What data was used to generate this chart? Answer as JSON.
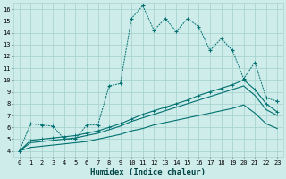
{
  "title": "",
  "xlabel": "Humidex (Indice chaleur)",
  "bg_color": "#ceecea",
  "grid_color": "#aad4d0",
  "line_color": "#007070",
  "xlim": [
    -0.5,
    23.5
  ],
  "ylim": [
    3.5,
    16.5
  ],
  "xticks": [
    0,
    1,
    2,
    3,
    4,
    5,
    6,
    7,
    8,
    9,
    10,
    11,
    12,
    13,
    14,
    15,
    16,
    17,
    18,
    19,
    20,
    21,
    22,
    23
  ],
  "yticks": [
    4,
    5,
    6,
    7,
    8,
    9,
    10,
    11,
    12,
    13,
    14,
    15,
    16
  ],
  "series1_x": [
    0,
    1,
    2,
    3,
    4,
    5,
    6,
    7,
    8,
    9,
    10,
    11,
    12,
    13,
    14,
    15,
    16,
    17,
    18,
    19,
    20,
    21,
    22,
    23
  ],
  "series1_y": [
    4.0,
    6.3,
    6.2,
    6.1,
    5.0,
    5.0,
    6.2,
    6.2,
    9.5,
    9.7,
    15.2,
    16.3,
    14.2,
    15.2,
    14.1,
    15.2,
    14.5,
    12.5,
    13.5,
    12.5,
    10.1,
    11.5,
    8.5,
    8.2
  ],
  "series2_x": [
    0,
    1,
    2,
    3,
    4,
    5,
    6,
    7,
    8,
    9,
    10,
    11,
    12,
    13,
    14,
    15,
    16,
    17,
    18,
    19,
    20,
    21,
    22,
    23
  ],
  "series2_y": [
    4.0,
    4.9,
    5.0,
    5.1,
    5.2,
    5.3,
    5.5,
    5.7,
    6.0,
    6.3,
    6.7,
    7.1,
    7.4,
    7.7,
    8.0,
    8.3,
    8.7,
    9.0,
    9.3,
    9.6,
    10.0,
    9.2,
    8.0,
    7.3
  ],
  "series3_x": [
    0,
    1,
    2,
    3,
    4,
    5,
    6,
    7,
    8,
    9,
    10,
    11,
    12,
    13,
    14,
    15,
    16,
    17,
    18,
    19,
    20,
    21,
    22,
    23
  ],
  "series3_y": [
    4.0,
    4.7,
    4.8,
    4.9,
    5.0,
    5.1,
    5.3,
    5.5,
    5.8,
    6.1,
    6.5,
    6.8,
    7.1,
    7.4,
    7.7,
    8.0,
    8.3,
    8.6,
    8.9,
    9.2,
    9.5,
    8.7,
    7.5,
    7.0
  ],
  "series4_x": [
    0,
    1,
    2,
    3,
    4,
    5,
    6,
    7,
    8,
    9,
    10,
    11,
    12,
    13,
    14,
    15,
    16,
    17,
    18,
    19,
    20,
    21,
    22,
    23
  ],
  "series4_y": [
    4.0,
    4.3,
    4.4,
    4.5,
    4.6,
    4.7,
    4.8,
    5.0,
    5.2,
    5.4,
    5.7,
    5.9,
    6.2,
    6.4,
    6.6,
    6.8,
    7.0,
    7.2,
    7.4,
    7.6,
    7.9,
    7.2,
    6.3,
    5.9
  ]
}
